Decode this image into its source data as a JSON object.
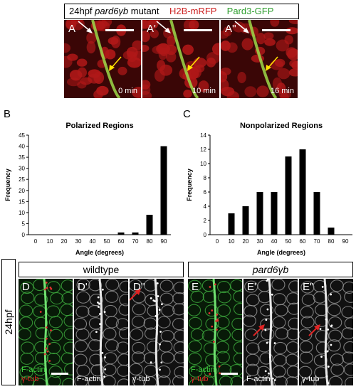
{
  "header_top": {
    "prefix": "24hpf",
    "gene": "pard6γb",
    "suffix": "mutant",
    "marker_red": "H2B-mRFP",
    "marker_green": "Pard3-GFP",
    "red_color": "#cc1f1f",
    "green_color": "#2e9e2e"
  },
  "panels_top": [
    {
      "letter": "A",
      "time": "0 min"
    },
    {
      "letter": "A'",
      "time": "10 min"
    },
    {
      "letter": "A''",
      "time": "16 min"
    }
  ],
  "chart_labels": {
    "B": "B",
    "C": "C"
  },
  "chart_data": [
    {
      "type": "bar",
      "title": "Polarized Regions",
      "xlabel": "Angle (degrees)",
      "ylabel": "Frequency",
      "categories": [
        0,
        10,
        20,
        30,
        40,
        50,
        60,
        70,
        80,
        90
      ],
      "values": [
        0,
        0,
        0,
        0,
        0,
        0,
        1,
        1,
        9,
        40
      ],
      "ylim": [
        0,
        45
      ],
      "yticks": [
        0,
        5,
        10,
        15,
        20,
        25,
        30,
        35,
        40,
        45
      ]
    },
    {
      "type": "bar",
      "title": "Nonpolarized Regions",
      "xlabel": "Angle (degrees)",
      "ylabel": "Frequency",
      "categories": [
        0,
        10,
        20,
        30,
        40,
        50,
        60,
        70,
        80,
        90
      ],
      "values": [
        0,
        3,
        4,
        6,
        6,
        11,
        12,
        6,
        1,
        0
      ],
      "ylim": [
        0,
        14
      ],
      "yticks": [
        0,
        2,
        4,
        6,
        8,
        10,
        12,
        14
      ]
    }
  ],
  "bottom": {
    "wildtype_label": "wildtype",
    "mutant_label": "pard6γb",
    "stage_label": "24hpf",
    "panels": [
      {
        "letter": "D",
        "label1": "F-actin",
        "label2": "γ-tub"
      },
      {
        "letter": "D'",
        "label1": "F-actin"
      },
      {
        "letter": "D''",
        "label1": "γ-tub"
      },
      {
        "letter": "E",
        "label1": "F-actin",
        "label2": "γ-tub"
      },
      {
        "letter": "E'",
        "label1": "F-actin"
      },
      {
        "letter": "E''",
        "label1": "γ-tub"
      }
    ]
  }
}
